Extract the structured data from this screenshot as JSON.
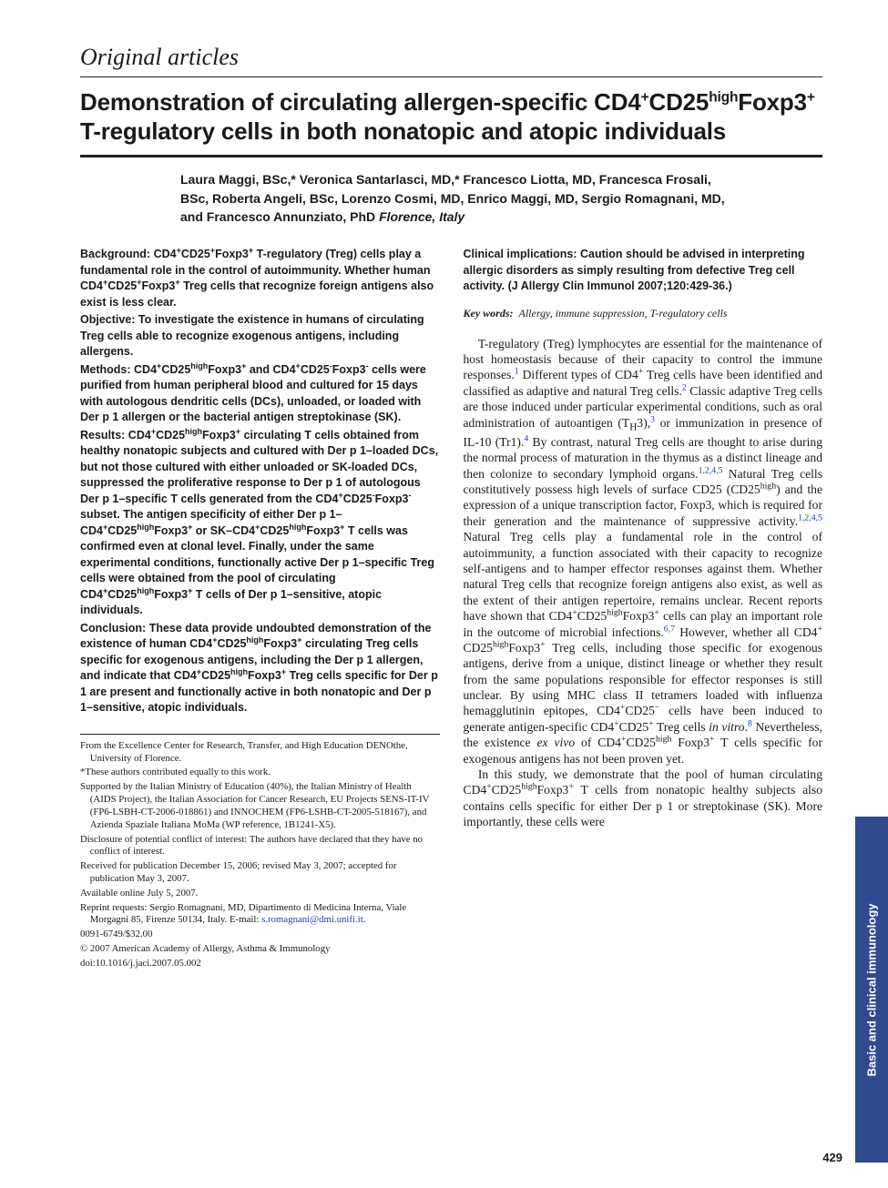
{
  "section_label": "Original articles",
  "title_html": "Demonstration of circulating allergen-specific CD4<sup>+</sup>CD25<sup>high</sup>Foxp3<sup>+</sup> T-regulatory cells in both nonatopic and atopic individuals",
  "authors": "Laura Maggi, BSc,* Veronica Santarlasci, MD,* Francesco Liotta, MD, Francesca Frosali, BSc, Roberta Angeli, BSc, Lorenzo Cosmi, MD, Enrico Maggi, MD, Sergio Romagnani, MD, and Francesco Annunziato, PhD",
  "affiliation": "Florence, Italy",
  "abstract": {
    "background": "CD4<sup>+</sup>CD25<sup>+</sup>Foxp3<sup>+</sup> T-regulatory (Treg) cells play a fundamental role in the control of autoimmunity. Whether human CD4<sup>+</sup>CD25<sup>+</sup>Foxp3<sup>+</sup> Treg cells that recognize foreign antigens also exist is less clear.",
    "objective": "To investigate the existence in humans of circulating Treg cells able to recognize exogenous antigens, including allergens.",
    "methods": "CD4<sup>+</sup>CD25<sup>high</sup>Foxp3<sup>+</sup> and CD4<sup>+</sup>CD25<sup>-</sup>Foxp3<sup>-</sup> cells were purified from human peripheral blood and cultured for 15 days with autologous dendritic cells (DCs), unloaded, or loaded with Der p 1 allergen or the bacterial antigen streptokinase (SK).",
    "results": "CD4<sup>+</sup>CD25<sup>high</sup>Foxp3<sup>+</sup> circulating T cells obtained from healthy nonatopic subjects and cultured with Der p 1–loaded DCs, but not those cultured with either unloaded or SK-loaded DCs, suppressed the proliferative response to Der p 1 of autologous Der p 1–specific T cells generated from the CD4<sup>+</sup>CD25<sup>-</sup>Foxp3<sup>-</sup> subset. The antigen specificity of either Der p 1–CD4<sup>+</sup>CD25<sup>high</sup>Foxp3<sup>+</sup> or SK–CD4<sup>+</sup>CD25<sup>high</sup>Foxp3<sup>+</sup> T cells was confirmed even at clonal level. Finally, under the same experimental conditions, functionally active Der p 1–specific Treg cells were obtained from the pool of circulating CD4<sup>+</sup>CD25<sup>high</sup>Foxp3<sup>+</sup> T cells of Der p 1–sensitive, atopic individuals.",
    "conclusion": "These data provide undoubted demonstration of the existence of human CD4<sup>+</sup>CD25<sup>high</sup>Foxp3<sup>+</sup> circulating Treg cells specific for exogenous antigens, including the Der p 1 allergen, and indicate that CD4<sup>+</sup>CD25<sup>high</sup>Foxp3<sup>+</sup> Treg cells specific for Der p 1 are present and functionally active in both nonatopic and Der p 1–sensitive, atopic individuals.",
    "clinical": "Caution should be advised in interpreting allergic disorders as simply resulting from defective Treg cell activity. (J Allergy Clin Immunol 2007;120:429-36.)"
  },
  "keywords_label": "Key words:",
  "keywords": "Allergy, immune suppression, T-regulatory cells",
  "body_para1": "T-regulatory (Treg) lymphocytes are essential for the maintenance of host homeostasis because of their capacity to control the immune responses.<sup class=\"ref\">1</sup> Different types of CD4<sup>+</sup> Treg cells have been identified and classified as adaptive and natural Treg cells.<sup class=\"ref\">2</sup> Classic adaptive Treg cells are those induced under particular experimental conditions, such as oral administration of autoantigen (T<sub>H</sub>3),<sup class=\"ref\">3</sup> or immunization in presence of IL-10 (Tr1).<sup class=\"ref\">4</sup> By contrast, natural Treg cells are thought to arise during the normal process of maturation in the thymus as a distinct lineage and then colonize to secondary lymphoid organs.<sup class=\"ref\">1,2,4,5</sup> Natural Treg cells constitutively possess high levels of surface CD25 (CD25<sup>high</sup>) and the expression of a unique transcription factor, Foxp3, which is required for their generation and the maintenance of suppressive activity.<sup class=\"ref\">1,2,4,5</sup> Natural Treg cells play a fundamental role in the control of autoimmunity, a function associated with their capacity to recognize self-antigens and to hamper effector responses against them. Whether natural Treg cells that recognize foreign antigens also exist, as well as the extent of their antigen repertoire, remains unclear. Recent reports have shown that CD4<sup>+</sup>CD25<sup>high</sup>Foxp3<sup>+</sup> cells can play an important role in the outcome of microbial infections.<sup class=\"ref\">6,7</sup> However, whether all CD4<sup>+</sup> CD25<sup>high</sup>Foxp3<sup>+</sup> Treg cells, including those specific for exogenous antigens, derive from a unique, distinct lineage or whether they result from the same populations responsible for effector responses is still unclear. By using MHC class II tetramers loaded with influenza hemagglutinin epitopes, CD4<sup>+</sup>CD25<sup>−</sup> cells have been induced to generate antigen-specific CD4<sup>+</sup>CD25<sup>+</sup> Treg cells <span class=\"ital\">in vitro</span>.<sup class=\"ref\">8</sup> Nevertheless, the existence <span class=\"ital\">ex vivo</span> of CD4<sup>+</sup>CD25<sup>high</sup> Foxp3<sup>+</sup> T cells specific for exogenous antigens has not been proven yet.",
  "body_para2": "In this study, we demonstrate that the pool of human circulating CD4<sup>+</sup>CD25<sup>high</sup>Foxp3<sup>+</sup> T cells from nonatopic healthy subjects also contains cells specific for either Der p 1 or streptokinase (SK). More importantly, these cells were",
  "footnotes": {
    "from": "From the Excellence Center for Research, Transfer, and High Education DENOthe, University of Florence.",
    "equal": "*These authors contributed equally to this work.",
    "support": "Supported by the Italian Ministry of Education (40%), the Italian Ministry of Health (AIDS Project), the Italian Association for Cancer Research, EU Projects SENS-IT-IV (FP6-LSBH-CT-2006-018861) and INNOCHEM (FP6-LSHB-CT-2005-518167), and Azienda Spaziale Italiana MoMa (WP reference, 1B1241-X5).",
    "disclosure": "Disclosure of potential conflict of interest: The authors have declared that they have no conflict of interest.",
    "received": "Received for publication December 15, 2006; revised May 3, 2007; accepted for publication May 3, 2007.",
    "online": "Available online July 5, 2007.",
    "reprint": "Reprint requests: Sergio Romagnani, MD, Dipartimento di Medicina Interna, Viale Morgagni 85, Firenze 50134, Italy. E-mail: ",
    "email": "s.romagnani@dmi.unifi.it",
    "issn": "0091-6749/$32.00",
    "copyright": "© 2007 American Academy of Allergy, Asthma & Immunology",
    "doi": "doi:10.1016/j.jaci.2007.05.002"
  },
  "side_tab": "Basic and clinical immunology",
  "page_number": "429",
  "colors": {
    "ref_link": "#1a3fb0",
    "side_tab_bg": "#2f4a8f"
  }
}
